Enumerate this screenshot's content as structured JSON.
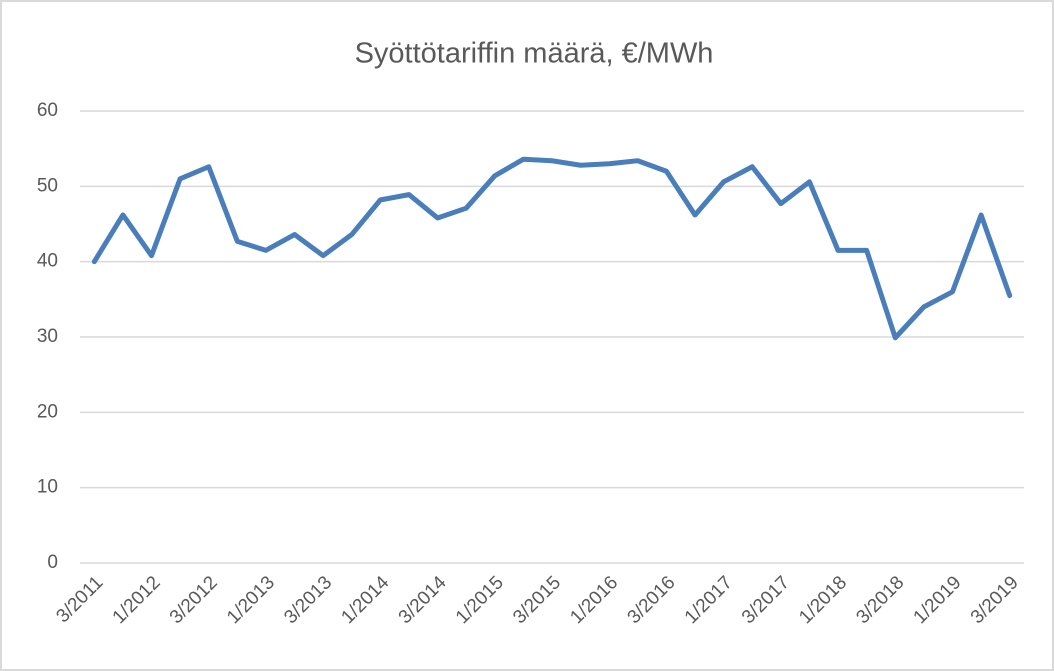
{
  "chart_data": {
    "type": "line",
    "title": "Syöttötariffin määrä, €/MWh",
    "categories": [
      "3/2011",
      null,
      "1/2012",
      null,
      "3/2012",
      null,
      "1/2013",
      null,
      "3/2013",
      null,
      "1/2014",
      null,
      "3/2014",
      null,
      "1/2015",
      null,
      "3/2015",
      null,
      "1/2016",
      null,
      "3/2016",
      null,
      "1/2017",
      null,
      "3/2017",
      null,
      "1/2018",
      null,
      "3/2018",
      null,
      "1/2019",
      null,
      "3/2019"
    ],
    "values": [
      40,
      46.2,
      40.8,
      51,
      52.6,
      42.7,
      41.5,
      43.6,
      40.8,
      43.6,
      48.2,
      48.9,
      45.8,
      47.1,
      51.4,
      53.6,
      53.4,
      52.8,
      53,
      53.4,
      52,
      46.2,
      50.6,
      52.6,
      47.7,
      50.6,
      41.5,
      41.5,
      29.9,
      34,
      36,
      46.2,
      35.5
    ],
    "color": "#4a7ebb",
    "ylim": [
      0,
      60
    ],
    "yticks": [
      0,
      10,
      20,
      30,
      40,
      50,
      60
    ],
    "grid": true
  }
}
